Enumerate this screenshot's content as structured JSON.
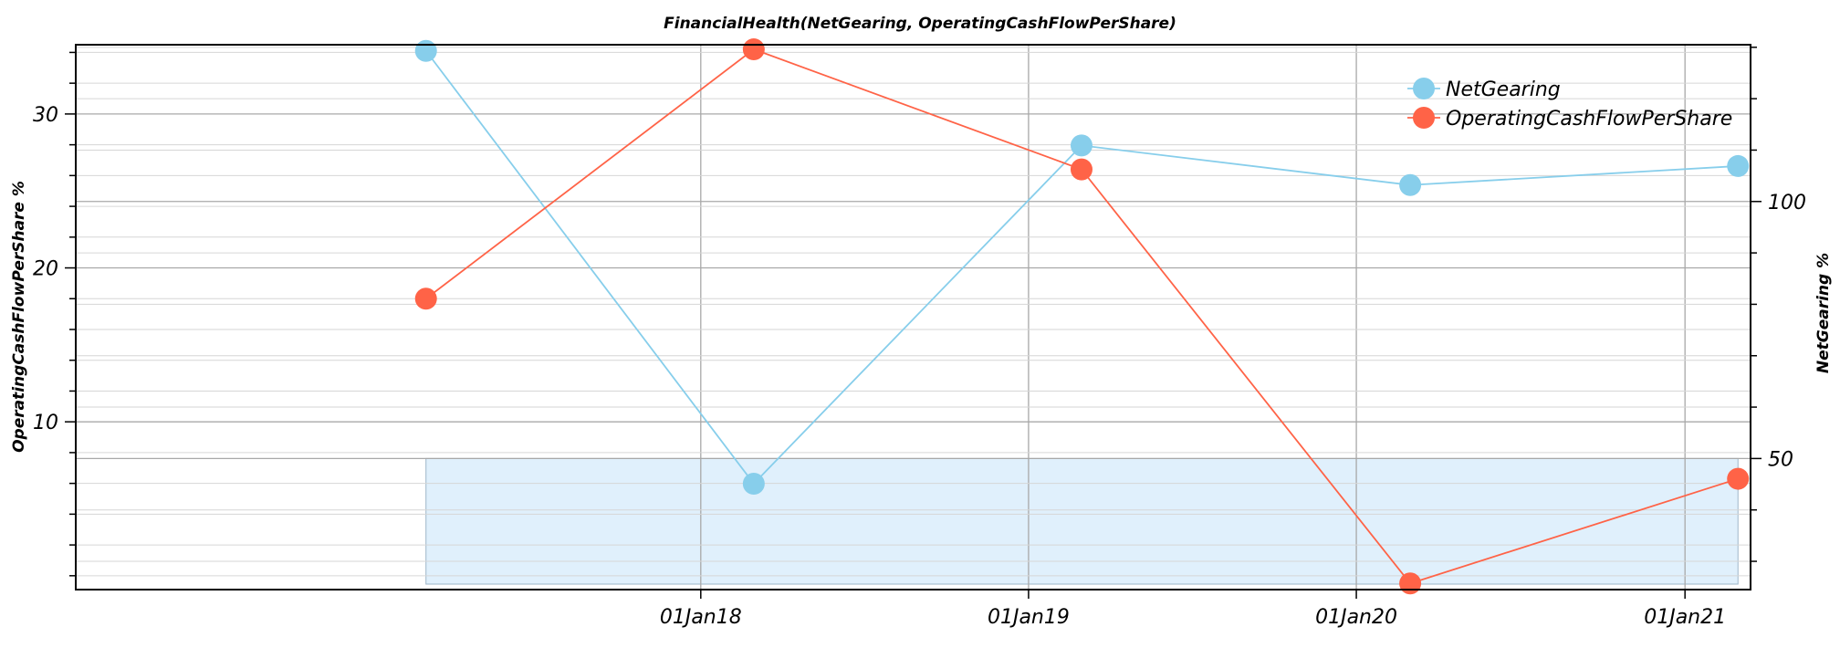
{
  "chart_data": {
    "type": "line",
    "title": "FinancialHealth(NetGearing, OperatingCashFlowPerShare)",
    "x": [
      "2017-03-01",
      "2018-03-01",
      "2019-03-01",
      "2020-03-01",
      "2021-03-01"
    ],
    "x_tick_labels": [
      {
        "date": "2018-01-01",
        "label": "01Jan18"
      },
      {
        "date": "2019-01-01",
        "label": "01Jan19"
      },
      {
        "date": "2020-01-01",
        "label": "01Jan20"
      },
      {
        "date": "2021-01-01",
        "label": "01Jan21"
      }
    ],
    "xlim": [
      "2016-02-05",
      "2021-03-15"
    ],
    "left_axis": {
      "label": "OperatingCashFlowPerShare %",
      "ylim": [
        -0.9,
        34.5
      ],
      "ticks": [
        10,
        20,
        30
      ]
    },
    "right_axis": {
      "label": "NetGearing %",
      "ylim": [
        24.5,
        130.5
      ],
      "ticks": [
        50,
        100
      ]
    },
    "series": [
      {
        "name": "NetGearing",
        "axis": "right",
        "color": "#87ceeb",
        "values": [
          129.3,
          45.1,
          110.9,
          103.2,
          106.9
        ]
      },
      {
        "name": "OperatingCashFlowPerShare",
        "axis": "left",
        "color": "#ff6347",
        "values": [
          18.0,
          34.2,
          26.4,
          -0.5,
          6.3
        ]
      }
    ],
    "shaded_band": {
      "axis": "right",
      "from": 24.5,
      "to": 50,
      "color": "#e0f0fc"
    },
    "legend": "top-right",
    "grid": true
  }
}
